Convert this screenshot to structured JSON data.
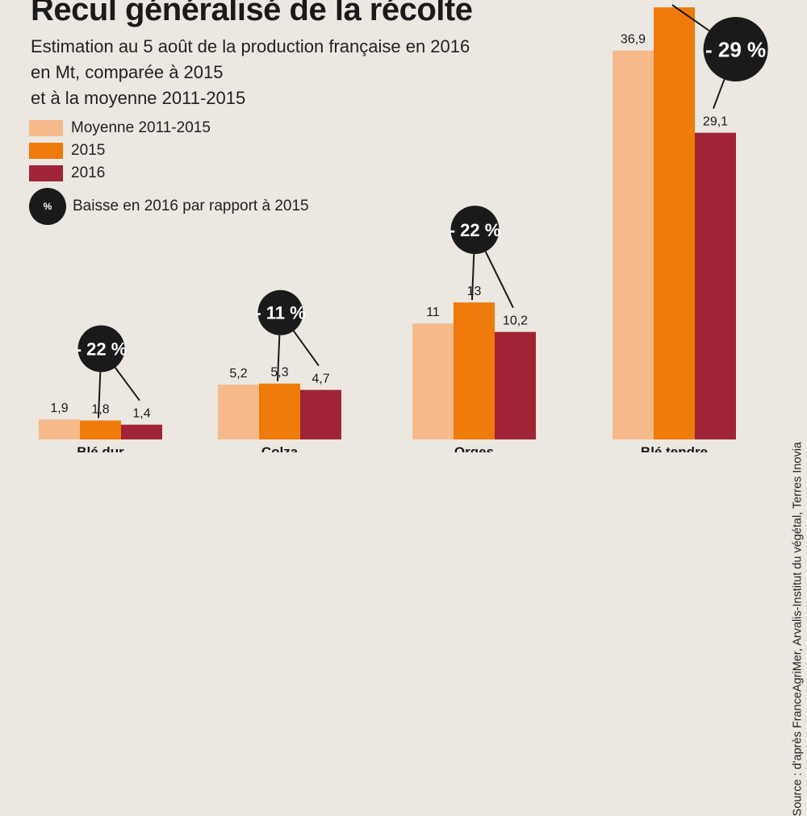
{
  "chart_data": {
    "type": "bar",
    "title": "Recul généralisé de la récolte",
    "subtitle_lines": [
      "Estimation au 5 août de la production française en 2016",
      "en Mt, comparée à 2015",
      "et à la moyenne 2011-2015"
    ],
    "categories": [
      "Blé dur",
      "Colza",
      "Orges",
      "Blé tendre"
    ],
    "series": [
      {
        "name": "Moyenne 2011-2015",
        "values": [
          1.9,
          5.2,
          11,
          36.9
        ],
        "labels": [
          "1,9",
          "5,2",
          "11",
          "36,9"
        ],
        "color": "#f6b98a"
      },
      {
        "name": "2015",
        "values": [
          1.8,
          5.3,
          13,
          41
        ],
        "labels": [
          "1,8",
          "5,3",
          "13",
          ""
        ],
        "color": "#ee7b0a"
      },
      {
        "name": "2016",
        "values": [
          1.4,
          4.7,
          10.2,
          29.1
        ],
        "labels": [
          "1,4",
          "4,7",
          "10,2",
          "29,1"
        ],
        "color": "#9e2436"
      }
    ],
    "drops": [
      "- 22 %",
      "- 11 %",
      "- 22 %",
      "- 29 %"
    ],
    "drop_legend_symbol": "%",
    "drop_legend_label": "Baisse en 2016 par rapport à 2015",
    "legend_placement": "top-left",
    "grid": false,
    "source": "Source : d'après FranceAgriMer, Arvalis-Institut du végétal, Terres Inovia"
  }
}
